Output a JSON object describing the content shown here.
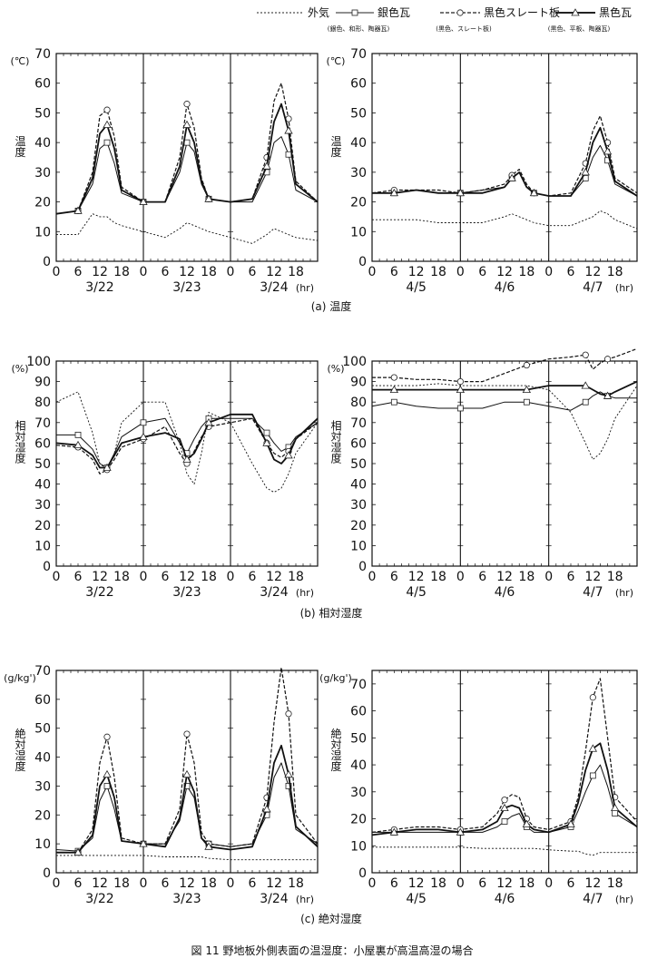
{
  "legend": {
    "items": [
      {
        "label": "外気",
        "sub": "",
        "dash": "2,2",
        "width": 1,
        "marker": "none",
        "color": "#222222"
      },
      {
        "label": "銀色瓦",
        "sub": "(銀色、和形、陶器瓦)",
        "dash": "",
        "width": 1,
        "marker": "square",
        "color": "#222222"
      },
      {
        "label": "黒色スレート板",
        "sub": "(黒色、スレート板)",
        "dash": "4,2",
        "width": 1.2,
        "marker": "circle",
        "color": "#222222"
      },
      {
        "label": "黒色瓦",
        "sub": "(黒色、平板、陶器瓦)",
        "dash": "",
        "width": 2,
        "marker": "triangle",
        "color": "#222222"
      }
    ]
  },
  "captions": {
    "temperature": "(a) 温度",
    "relative_humidity": "(b) 相対湿度",
    "absolute_humidity": "(c) 絶対湿度"
  },
  "figure_title": "図 11 野地板外側表面の温湿度：小屋裏が高温高湿の場合",
  "x_axis": {
    "hour_ticks": [
      "0",
      "6",
      "12",
      "18"
    ],
    "unit": "(hr)",
    "dates_march": [
      "3/22",
      "3/23",
      "3/24"
    ],
    "dates_april": [
      "4/5",
      "4/6",
      "4/7"
    ]
  },
  "chart_data": [
    {
      "type": "line",
      "panel": "a-left",
      "ylabel": "温度",
      "yunit": "(℃)",
      "ylim": [
        0,
        70
      ],
      "yticks": [
        0,
        10,
        20,
        30,
        40,
        50,
        60,
        70
      ],
      "xlim": [
        0,
        72
      ],
      "x": [
        0,
        6,
        10,
        12,
        14,
        16,
        18,
        24,
        30,
        34,
        36,
        38,
        40,
        42,
        48,
        54,
        58,
        60,
        62,
        64,
        66,
        72
      ],
      "series": [
        {
          "values": [
            9,
            9,
            16,
            15,
            15,
            13,
            12,
            10,
            8,
            11,
            13,
            12,
            11,
            10,
            8,
            6,
            9,
            11,
            10,
            9,
            8,
            7
          ]
        },
        {
          "values": [
            16,
            17,
            26,
            38,
            40,
            33,
            23,
            20,
            20,
            30,
            40,
            37,
            26,
            21,
            20,
            20,
            30,
            40,
            42,
            36,
            24,
            20
          ]
        },
        {
          "values": [
            16,
            17,
            30,
            49,
            51,
            42,
            25,
            20,
            20,
            35,
            53,
            45,
            28,
            21,
            20,
            21,
            35,
            54,
            60,
            48,
            27,
            20
          ]
        },
        {
          "values": [
            16,
            17,
            28,
            43,
            46,
            38,
            24,
            20,
            20,
            32,
            46,
            40,
            27,
            21,
            20,
            21,
            32,
            47,
            53,
            44,
            26,
            20
          ]
        }
      ]
    },
    {
      "type": "line",
      "panel": "a-right",
      "ylabel": "温度",
      "yunit": "(℃)",
      "ylim": [
        0,
        70
      ],
      "yticks": [
        0,
        10,
        20,
        30,
        40,
        50,
        60,
        70
      ],
      "xlim": [
        0,
        72
      ],
      "x": [
        0,
        6,
        12,
        18,
        24,
        30,
        36,
        38,
        40,
        42,
        44,
        48,
        54,
        58,
        60,
        62,
        64,
        66,
        72
      ],
      "series": [
        {
          "values": [
            14,
            14,
            14,
            13,
            13,
            13,
            15,
            16,
            15,
            14,
            13,
            12,
            12,
            14,
            15,
            17,
            16,
            14,
            11
          ]
        },
        {
          "values": [
            23,
            23,
            24,
            23,
            23,
            24,
            25,
            28,
            30,
            25,
            23,
            22,
            22,
            28,
            35,
            39,
            34,
            26,
            22
          ]
        },
        {
          "values": [
            23,
            24,
            24,
            24,
            23,
            24,
            26,
            29,
            31,
            26,
            23,
            22,
            23,
            33,
            44,
            49,
            40,
            28,
            23
          ]
        },
        {
          "values": [
            23,
            23,
            24,
            23,
            23,
            23,
            25,
            28,
            30,
            25,
            23,
            22,
            22,
            30,
            40,
            45,
            37,
            27,
            22
          ]
        }
      ]
    },
    {
      "type": "line",
      "panel": "b-left",
      "ylabel": "相対湿度",
      "yunit": "(%)",
      "ylim": [
        0,
        100
      ],
      "yticks": [
        0,
        10,
        20,
        30,
        40,
        50,
        60,
        70,
        80,
        90,
        100
      ],
      "xlim": [
        0,
        72
      ],
      "x": [
        0,
        6,
        10,
        12,
        14,
        16,
        18,
        24,
        30,
        34,
        36,
        38,
        40,
        42,
        48,
        54,
        58,
        60,
        62,
        64,
        66,
        72
      ],
      "series": [
        {
          "values": [
            80,
            85,
            65,
            50,
            47,
            55,
            70,
            80,
            80,
            60,
            45,
            40,
            55,
            75,
            70,
            50,
            38,
            36,
            38,
            45,
            55,
            70
          ]
        },
        {
          "values": [
            64,
            64,
            57,
            50,
            48,
            55,
            63,
            70,
            72,
            60,
            55,
            62,
            68,
            72,
            72,
            72,
            65,
            60,
            56,
            58,
            63,
            70
          ]
        },
        {
          "values": [
            59,
            58,
            52,
            45,
            47,
            52,
            58,
            62,
            68,
            55,
            50,
            56,
            63,
            68,
            70,
            72,
            60,
            55,
            53,
            56,
            62,
            70
          ]
        },
        {
          "values": [
            60,
            59,
            54,
            48,
            48,
            54,
            60,
            63,
            65,
            62,
            52,
            55,
            62,
            70,
            74,
            74,
            60,
            52,
            50,
            54,
            62,
            72
          ]
        }
      ]
    },
    {
      "type": "line",
      "panel": "b-right",
      "ylabel": "相対湿度",
      "yunit": "(%)",
      "ylim": [
        0,
        100
      ],
      "yticks": [
        0,
        10,
        20,
        30,
        40,
        50,
        60,
        70,
        80,
        90,
        100
      ],
      "xlim": [
        0,
        72
      ],
      "x": [
        0,
        6,
        12,
        18,
        24,
        30,
        36,
        42,
        48,
        54,
        58,
        60,
        62,
        64,
        66,
        72
      ],
      "series": [
        {
          "values": [
            88,
            88,
            88,
            89,
            88,
            88,
            88,
            88,
            86,
            75,
            60,
            52,
            55,
            62,
            72,
            88
          ]
        },
        {
          "values": [
            78,
            80,
            78,
            77,
            77,
            77,
            80,
            80,
            78,
            76,
            80,
            83,
            85,
            83,
            82,
            82
          ]
        },
        {
          "values": [
            92,
            92,
            91,
            91,
            90,
            90,
            94,
            98,
            101,
            102,
            103,
            96,
            99,
            101,
            102,
            106
          ]
        },
        {
          "values": [
            86,
            86,
            86,
            86,
            86,
            86,
            86,
            86,
            88,
            88,
            88,
            86,
            84,
            83,
            85,
            90
          ]
        }
      ]
    },
    {
      "type": "line",
      "panel": "c-left",
      "ylabel": "絶対湿度",
      "yunit": "(g/kg')",
      "ylim": [
        0,
        70
      ],
      "yticks": [
        0,
        10,
        20,
        30,
        40,
        50,
        60,
        70
      ],
      "xlim": [
        0,
        72
      ],
      "x": [
        0,
        6,
        10,
        12,
        14,
        16,
        18,
        24,
        30,
        34,
        36,
        38,
        40,
        42,
        48,
        54,
        58,
        60,
        62,
        64,
        66,
        72
      ],
      "series": [
        {
          "values": [
            6,
            6,
            6,
            6,
            6,
            6,
            6,
            6,
            5.5,
            5.5,
            5.5,
            5.5,
            5.5,
            5,
            4.5,
            4.5,
            4.5,
            4.5,
            4.5,
            4.5,
            4.5,
            4.5
          ]
        },
        {
          "values": [
            8,
            7.5,
            12,
            25,
            30,
            22,
            11,
            10,
            10,
            18,
            30,
            26,
            12,
            10,
            9,
            10,
            20,
            33,
            38,
            30,
            15,
            10
          ]
        },
        {
          "values": [
            7,
            7,
            15,
            38,
            47,
            33,
            12,
            10,
            10,
            22,
            48,
            38,
            14,
            10,
            9,
            10,
            26,
            52,
            71,
            55,
            20,
            10
          ]
        },
        {
          "values": [
            7,
            7,
            13,
            30,
            34,
            26,
            11,
            10,
            9,
            19,
            34,
            28,
            12,
            9,
            8,
            9,
            22,
            38,
            44,
            34,
            16,
            9
          ]
        }
      ]
    },
    {
      "type": "line",
      "panel": "c-right",
      "ylabel": "絶対湿度",
      "yunit": "(g/kg')",
      "ylim": [
        0,
        75
      ],
      "yticks": [
        0,
        10,
        20,
        30,
        40,
        50,
        60,
        70
      ],
      "xlim": [
        0,
        72
      ],
      "x": [
        0,
        6,
        12,
        18,
        24,
        30,
        34,
        36,
        38,
        40,
        42,
        44,
        48,
        54,
        56,
        58,
        60,
        62,
        64,
        66,
        72
      ],
      "series": [
        {
          "values": [
            9.5,
            9.5,
            9.5,
            9.5,
            9.5,
            9,
            9,
            9,
            9,
            9,
            9,
            9,
            8.5,
            8,
            8,
            7,
            6.5,
            7.5,
            7.5,
            7.5,
            7.5
          ]
        },
        {
          "values": [
            15,
            15,
            15,
            15,
            15,
            15,
            17,
            19,
            21,
            22,
            17,
            15,
            15,
            17,
            23,
            30,
            36,
            40,
            32,
            22,
            17
          ]
        },
        {
          "values": [
            15,
            16,
            17,
            17,
            16,
            17,
            22,
            27,
            29,
            28,
            20,
            17,
            16,
            19,
            28,
            45,
            65,
            72,
            50,
            28,
            19
          ]
        },
        {
          "values": [
            14,
            15,
            16,
            16,
            15,
            16,
            19,
            24,
            25,
            24,
            18,
            16,
            15,
            18,
            26,
            38,
            46,
            48,
            38,
            24,
            17
          ]
        }
      ]
    }
  ]
}
